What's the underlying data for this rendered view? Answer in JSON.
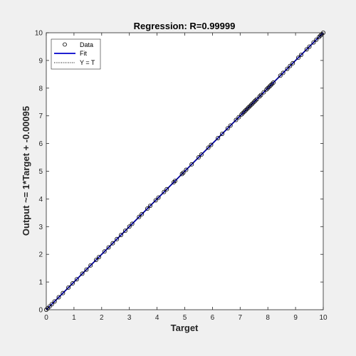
{
  "chart_data": {
    "type": "scatter",
    "title": "Regression: R=0.99999",
    "xlabel": "Target",
    "ylabel": "Output ~= 1*Target + -0.00095",
    "xlim": [
      0,
      10
    ],
    "ylim": [
      0,
      10
    ],
    "xticks": [
      0,
      1,
      2,
      3,
      4,
      5,
      6,
      7,
      8,
      9,
      10
    ],
    "yticks": [
      0,
      1,
      2,
      3,
      4,
      5,
      6,
      7,
      8,
      9,
      10
    ],
    "grid": false,
    "legend": {
      "position": "top-left",
      "entries": [
        {
          "label": "Data",
          "style": "circle-marker",
          "color": "#000000"
        },
        {
          "label": "Fit",
          "style": "solid-line",
          "color": "#0000cc"
        },
        {
          "label": "Y = T",
          "style": "dotted-line",
          "color": "#000000"
        }
      ]
    },
    "fit": {
      "slope": 1,
      "intercept": -0.00095
    },
    "series": [
      {
        "name": "Data",
        "points": [
          [
            0.0,
            0.0
          ],
          [
            0.05,
            0.05
          ],
          [
            0.12,
            0.12
          ],
          [
            0.2,
            0.2
          ],
          [
            0.3,
            0.3
          ],
          [
            0.45,
            0.45
          ],
          [
            0.6,
            0.6
          ],
          [
            0.8,
            0.8
          ],
          [
            0.95,
            0.95
          ],
          [
            1.1,
            1.1
          ],
          [
            1.3,
            1.3
          ],
          [
            1.45,
            1.45
          ],
          [
            1.6,
            1.6
          ],
          [
            1.8,
            1.8
          ],
          [
            1.9,
            1.9
          ],
          [
            2.1,
            2.1
          ],
          [
            2.25,
            2.25
          ],
          [
            2.4,
            2.4
          ],
          [
            2.55,
            2.55
          ],
          [
            2.7,
            2.7
          ],
          [
            2.85,
            2.85
          ],
          [
            3.0,
            3.0
          ],
          [
            3.1,
            3.1
          ],
          [
            3.35,
            3.35
          ],
          [
            3.45,
            3.45
          ],
          [
            3.65,
            3.65
          ],
          [
            3.75,
            3.75
          ],
          [
            3.95,
            3.95
          ],
          [
            4.05,
            4.05
          ],
          [
            4.25,
            4.25
          ],
          [
            4.35,
            4.35
          ],
          [
            4.6,
            4.6
          ],
          [
            4.65,
            4.65
          ],
          [
            4.9,
            4.9
          ],
          [
            4.95,
            4.95
          ],
          [
            5.05,
            5.05
          ],
          [
            5.25,
            5.25
          ],
          [
            5.5,
            5.5
          ],
          [
            5.6,
            5.6
          ],
          [
            5.85,
            5.85
          ],
          [
            5.95,
            5.95
          ],
          [
            6.2,
            6.2
          ],
          [
            6.35,
            6.35
          ],
          [
            6.55,
            6.55
          ],
          [
            6.65,
            6.65
          ],
          [
            6.85,
            6.85
          ],
          [
            6.95,
            6.95
          ],
          [
            7.05,
            7.05
          ],
          [
            7.1,
            7.1
          ],
          [
            7.15,
            7.15
          ],
          [
            7.2,
            7.2
          ],
          [
            7.25,
            7.25
          ],
          [
            7.3,
            7.3
          ],
          [
            7.35,
            7.35
          ],
          [
            7.4,
            7.4
          ],
          [
            7.45,
            7.45
          ],
          [
            7.5,
            7.5
          ],
          [
            7.55,
            7.55
          ],
          [
            7.6,
            7.6
          ],
          [
            7.7,
            7.7
          ],
          [
            7.75,
            7.75
          ],
          [
            7.85,
            7.85
          ],
          [
            7.95,
            7.95
          ],
          [
            8.0,
            8.0
          ],
          [
            8.05,
            8.05
          ],
          [
            8.1,
            8.1
          ],
          [
            8.15,
            8.15
          ],
          [
            8.2,
            8.2
          ],
          [
            8.45,
            8.45
          ],
          [
            8.55,
            8.55
          ],
          [
            8.7,
            8.7
          ],
          [
            8.8,
            8.8
          ],
          [
            8.9,
            8.9
          ],
          [
            9.1,
            9.1
          ],
          [
            9.2,
            9.2
          ],
          [
            9.4,
            9.4
          ],
          [
            9.5,
            9.5
          ],
          [
            9.65,
            9.65
          ],
          [
            9.75,
            9.75
          ],
          [
            9.85,
            9.85
          ],
          [
            9.9,
            9.9
          ],
          [
            9.95,
            9.95
          ],
          [
            10.0,
            10.0
          ]
        ]
      }
    ]
  }
}
